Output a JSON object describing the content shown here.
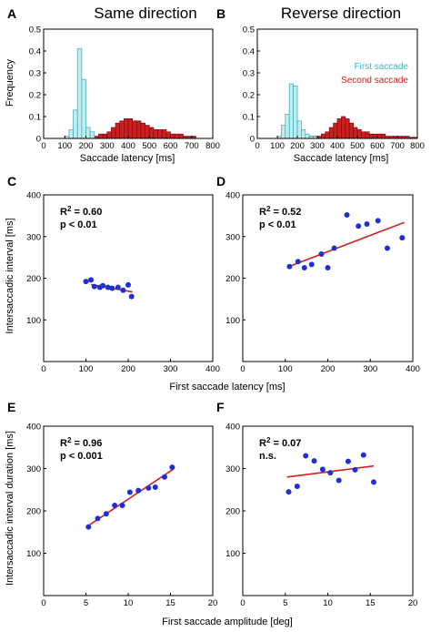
{
  "column_titles": {
    "left": "Same direction",
    "right": "Reverse direction"
  },
  "panel_letters": [
    "A",
    "B",
    "C",
    "D",
    "E",
    "F"
  ],
  "shared_labels": {
    "hist_x": "Saccade latency [ms]",
    "hist_y": "Frequency",
    "row2_x": "First saccade latency [ms]",
    "row2_y": "Intersaccadic interval [ms]",
    "row3_x": "First saccade amplitude [deg]",
    "row3_y": "Intersaccadic interval duration [ms]"
  },
  "legend": {
    "first": "First saccade",
    "second": "Second saccade"
  },
  "colors": {
    "first_fill": "#bfeef0",
    "first_edge": "#3aa6b2",
    "second_fill": "#cc1f1f",
    "second_edge": "#7a0d0d",
    "point": "#1f2fd6",
    "fit": "#d21f1f"
  },
  "chart_data": [
    {
      "id": "A",
      "type": "bar",
      "title": "Same direction",
      "xlabel": "Saccade latency [ms]",
      "ylabel": "Frequency",
      "xlim": [
        0,
        800
      ],
      "ylim": [
        0,
        0.5
      ],
      "xticks": [
        0,
        100,
        200,
        300,
        400,
        500,
        600,
        700,
        800
      ],
      "yticks": [
        0,
        0.1,
        0.2,
        0.3,
        0.4,
        0.5
      ],
      "bin_width": 20,
      "series": [
        {
          "name": "First saccade",
          "bin_starts": [
            100,
            120,
            140,
            160,
            180,
            200,
            220
          ],
          "values": [
            0.01,
            0.04,
            0.13,
            0.41,
            0.27,
            0.05,
            0.03
          ]
        },
        {
          "name": "Second saccade",
          "bin_starts": [
            200,
            220,
            240,
            260,
            280,
            300,
            320,
            340,
            360,
            380,
            400,
            420,
            440,
            460,
            480,
            500,
            520,
            540,
            560,
            580,
            600,
            620,
            640,
            660,
            680,
            700
          ],
          "values": [
            0.01,
            0.01,
            0.01,
            0.02,
            0.02,
            0.03,
            0.05,
            0.07,
            0.08,
            0.09,
            0.09,
            0.08,
            0.08,
            0.07,
            0.06,
            0.05,
            0.04,
            0.04,
            0.04,
            0.03,
            0.02,
            0.02,
            0.02,
            0.01,
            0.01,
            0.01
          ]
        }
      ]
    },
    {
      "id": "B",
      "type": "bar",
      "title": "Reverse direction",
      "xlabel": "Saccade latency [ms]",
      "ylabel": "",
      "xlim": [
        0,
        800
      ],
      "ylim": [
        0,
        0.5
      ],
      "xticks": [
        0,
        100,
        200,
        300,
        400,
        500,
        600,
        700,
        800
      ],
      "yticks": [
        0,
        0.1,
        0.2,
        0.3,
        0.4,
        0.5
      ],
      "bin_width": 20,
      "series": [
        {
          "name": "First saccade",
          "bin_starts": [
            100,
            120,
            140,
            160,
            180,
            200,
            220,
            240,
            260,
            280
          ],
          "values": [
            0.01,
            0.06,
            0.11,
            0.25,
            0.24,
            0.08,
            0.04,
            0.02,
            0.01,
            0.01
          ]
        },
        {
          "name": "Second saccade",
          "bin_starts": [
            240,
            260,
            280,
            300,
            320,
            340,
            360,
            380,
            400,
            420,
            440,
            460,
            480,
            500,
            520,
            540,
            560,
            580,
            600,
            620,
            640,
            660,
            680,
            700,
            720,
            740,
            760,
            780
          ],
          "values": [
            0.01,
            0.01,
            0.01,
            0.01,
            0.02,
            0.03,
            0.05,
            0.07,
            0.09,
            0.1,
            0.09,
            0.07,
            0.05,
            0.04,
            0.03,
            0.03,
            0.02,
            0.02,
            0.02,
            0.02,
            0.01,
            0.01,
            0.01,
            0.01,
            0.01,
            0.01,
            0.005,
            0.005
          ]
        }
      ]
    },
    {
      "id": "C",
      "type": "scatter",
      "xlim": [
        0,
        400
      ],
      "ylim": [
        0,
        400
      ],
      "xticks": [
        0,
        100,
        200,
        300,
        400
      ],
      "yticks": [
        100,
        200,
        300,
        400
      ],
      "r2": "R2 = 0.60",
      "p": "p < 0.01",
      "points": [
        [
          100,
          192
        ],
        [
          112,
          196
        ],
        [
          120,
          180
        ],
        [
          133,
          178
        ],
        [
          140,
          182
        ],
        [
          152,
          178
        ],
        [
          162,
          176
        ],
        [
          176,
          178
        ],
        [
          188,
          171
        ],
        [
          200,
          184
        ],
        [
          208,
          156
        ]
      ],
      "fit": [
        [
          112,
          185
        ],
        [
          210,
          167
        ]
      ]
    },
    {
      "id": "D",
      "type": "scatter",
      "xlim": [
        0,
        400
      ],
      "ylim": [
        0,
        400
      ],
      "xticks": [
        0,
        100,
        200,
        300,
        400
      ],
      "yticks": [
        100,
        200,
        300,
        400
      ],
      "r2": "R2 = 0.52",
      "p": "p < 0.01",
      "points": [
        [
          110,
          228
        ],
        [
          130,
          240
        ],
        [
          145,
          225
        ],
        [
          162,
          233
        ],
        [
          185,
          258
        ],
        [
          200,
          225
        ],
        [
          215,
          272
        ],
        [
          245,
          352
        ],
        [
          272,
          325
        ],
        [
          292,
          330
        ],
        [
          318,
          338
        ],
        [
          340,
          272
        ],
        [
          375,
          297
        ]
      ],
      "fit": [
        [
          108,
          228
        ],
        [
          380,
          334
        ]
      ]
    },
    {
      "id": "E",
      "type": "scatter",
      "xlim": [
        0,
        20
      ],
      "ylim": [
        0,
        400
      ],
      "xticks": [
        0,
        5,
        10,
        15,
        20
      ],
      "yticks": [
        100,
        200,
        300,
        400
      ],
      "r2": "R2 = 0.96",
      "p": "p < 0.001",
      "points": [
        [
          5.3,
          162
        ],
        [
          6.4,
          182
        ],
        [
          7.4,
          193
        ],
        [
          8.4,
          213
        ],
        [
          9.3,
          213
        ],
        [
          10.2,
          244
        ],
        [
          11.2,
          248
        ],
        [
          12.4,
          254
        ],
        [
          13.2,
          256
        ],
        [
          14.3,
          280
        ],
        [
          15.2,
          303
        ]
      ],
      "fit": [
        [
          5.2,
          164
        ],
        [
          15.3,
          298
        ]
      ]
    },
    {
      "id": "F",
      "type": "scatter",
      "xlim": [
        0,
        20
      ],
      "ylim": [
        0,
        400
      ],
      "xticks": [
        0,
        5,
        10,
        15,
        20
      ],
      "yticks": [
        100,
        200,
        300,
        400
      ],
      "r2": "R2 = 0.07",
      "p": "n.s.",
      "points": [
        [
          5.4,
          245
        ],
        [
          6.4,
          258
        ],
        [
          7.4,
          330
        ],
        [
          8.4,
          318
        ],
        [
          9.4,
          298
        ],
        [
          10.3,
          290
        ],
        [
          11.3,
          272
        ],
        [
          12.4,
          317
        ],
        [
          13.2,
          297
        ],
        [
          14.2,
          332
        ],
        [
          15.4,
          268
        ]
      ],
      "fit": [
        [
          5.2,
          280
        ],
        [
          15.4,
          306
        ]
      ]
    }
  ]
}
